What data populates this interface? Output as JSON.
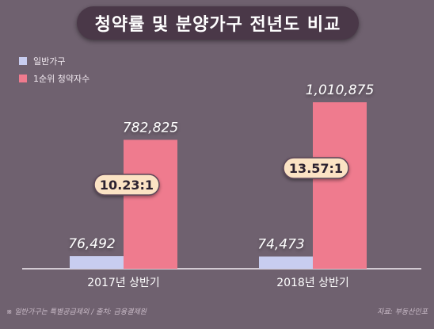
{
  "title": "청약률 및 분양가구 전년도 비교",
  "legend": [
    {
      "label": "일반가구",
      "color": "#c8cdf0"
    },
    {
      "label": "1순위 청약자수",
      "color": "#ef7b8e"
    }
  ],
  "chart_data": {
    "type": "bar",
    "categories": [
      "2017년 상반기",
      "2018년 상반기"
    ],
    "series": [
      {
        "name": "일반가구",
        "values": [
          76492,
          74473
        ],
        "labels": [
          "76,492",
          "74,473"
        ],
        "color": "#c8cdf0"
      },
      {
        "name": "1순위 청약자수",
        "values": [
          782825,
          1010875
        ],
        "labels": [
          "782,825",
          "1,010,875"
        ],
        "color": "#ef7b8e"
      }
    ],
    "ratios": [
      "10.23:1",
      "13.57:1"
    ],
    "ylim": [
      0,
      1010875
    ],
    "grid": false,
    "legend_position": "top-left"
  },
  "footnote": "※ 일반가구는 특별공급제외 / 출처: 금융결제원",
  "source": "자료: 부동산인포"
}
